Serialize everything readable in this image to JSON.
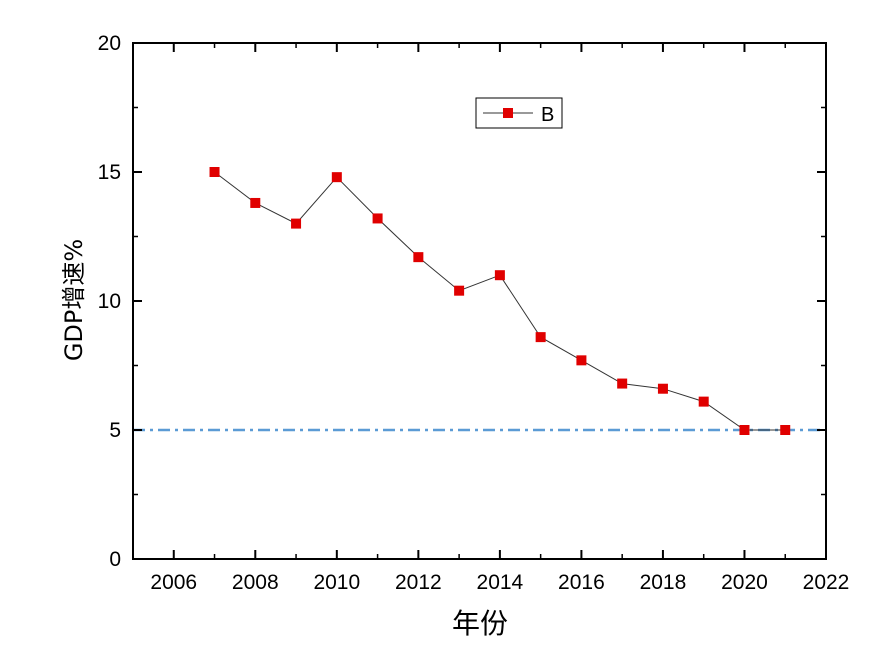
{
  "chart_data": {
    "type": "line",
    "title": "",
    "xlabel": "年份",
    "ylabel": "GDP增速%",
    "xlim": [
      2005,
      2022
    ],
    "ylim": [
      0,
      20
    ],
    "x_ticks": [
      2006,
      2008,
      2010,
      2012,
      2014,
      2016,
      2018,
      2020,
      2022
    ],
    "y_ticks": [
      0,
      5,
      10,
      15,
      20
    ],
    "grid": false,
    "legend_position": "top-right",
    "series": [
      {
        "name": "B",
        "color": "#e00000",
        "line_color": "#333333",
        "marker": "square",
        "x": [
          2007,
          2008,
          2009,
          2010,
          2011,
          2012,
          2013,
          2014,
          2015,
          2016,
          2017,
          2018,
          2019,
          2020,
          2021
        ],
        "y": [
          15.0,
          13.8,
          13.0,
          14.8,
          13.2,
          11.7,
          10.4,
          11.0,
          8.6,
          7.7,
          6.8,
          6.6,
          6.1,
          5.0,
          5.0
        ]
      }
    ],
    "reference_lines": [
      {
        "y": 5,
        "color": "#5b9bd5",
        "style": "dash-dot"
      }
    ]
  }
}
